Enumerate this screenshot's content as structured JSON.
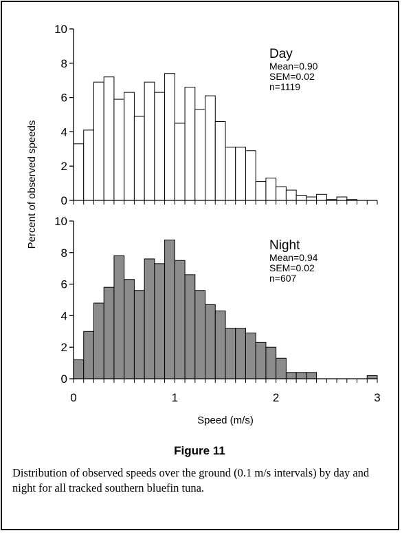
{
  "figure": {
    "title": "Figure 11",
    "caption": "Distribution of observed speeds over the ground (0.1 m/s intervals) by day and night for all tracked southern bluefin tuna."
  },
  "chart_data": {
    "type": "bar",
    "ylabel": "Percent of observed speeds",
    "xlabel": "Speed (m/s)",
    "xlim": [
      0,
      3
    ],
    "ylim": [
      0,
      10
    ],
    "bin_width": 0.1,
    "x_ticks": [
      0,
      1,
      2,
      3
    ],
    "y_ticks": [
      0,
      2,
      4,
      6,
      8,
      10
    ],
    "grid": false,
    "panels": [
      {
        "name": "Day",
        "stats": [
          "Mean=0.90",
          "SEM=0.02",
          "n=1119"
        ],
        "bar_color": "#ffffff",
        "bin_starts": [
          0.0,
          0.1,
          0.2,
          0.3,
          0.4,
          0.5,
          0.6,
          0.7,
          0.8,
          0.9,
          1.0,
          1.1,
          1.2,
          1.3,
          1.4,
          1.5,
          1.6,
          1.7,
          1.8,
          1.9,
          2.0,
          2.1,
          2.2,
          2.3,
          2.4,
          2.5,
          2.6,
          2.7,
          2.8,
          2.9
        ],
        "values": [
          3.3,
          4.1,
          6.9,
          7.2,
          5.9,
          6.3,
          4.9,
          6.9,
          6.3,
          7.4,
          4.5,
          6.6,
          5.3,
          6.1,
          4.6,
          3.1,
          3.1,
          2.9,
          1.1,
          1.3,
          0.8,
          0.6,
          0.3,
          0.2,
          0.35,
          0.05,
          0.2,
          0.05,
          0.0,
          0.0
        ]
      },
      {
        "name": "Night",
        "stats": [
          "Mean=0.94",
          "SEM=0.02",
          "n=607"
        ],
        "bar_color": "#8c8c8c",
        "bin_starts": [
          0.0,
          0.1,
          0.2,
          0.3,
          0.4,
          0.5,
          0.6,
          0.7,
          0.8,
          0.9,
          1.0,
          1.1,
          1.2,
          1.3,
          1.4,
          1.5,
          1.6,
          1.7,
          1.8,
          1.9,
          2.0,
          2.1,
          2.2,
          2.3,
          2.4,
          2.5,
          2.6,
          2.7,
          2.8,
          2.9
        ],
        "values": [
          1.2,
          3.0,
          4.8,
          5.8,
          7.8,
          6.3,
          5.6,
          7.6,
          7.3,
          8.8,
          7.5,
          6.6,
          5.6,
          4.7,
          4.3,
          3.2,
          3.2,
          2.9,
          2.3,
          2.0,
          1.3,
          0.4,
          0.4,
          0.4,
          0.0,
          0.0,
          0.0,
          0.0,
          0.0,
          0.2
        ]
      }
    ]
  }
}
